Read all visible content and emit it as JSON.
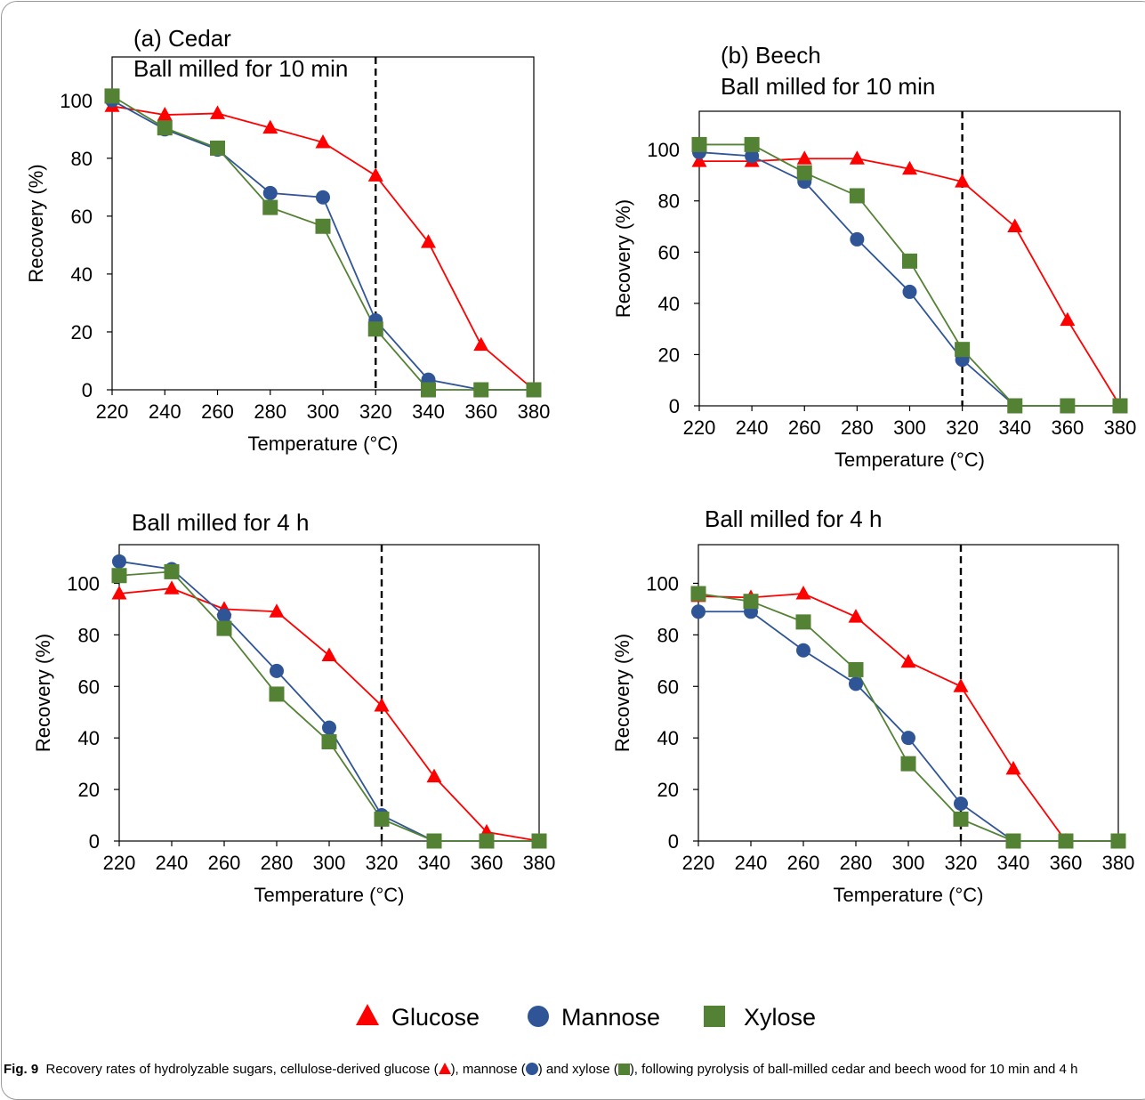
{
  "chart_data": [
    {
      "type": "line",
      "title": "(a) Cedar",
      "subtitle": "Ball milled for 10 min",
      "xlabel": "Temperature (°C)",
      "ylabel": "Recovery (%)",
      "xlim": [
        220,
        380
      ],
      "ylim": [
        0,
        115
      ],
      "x_ticks": [
        220,
        240,
        260,
        280,
        300,
        320,
        340,
        360,
        380
      ],
      "y_ticks": [
        0,
        20,
        40,
        60,
        80,
        100
      ],
      "dashed_line_x": 320,
      "x": [
        220,
        240,
        260,
        280,
        300,
        320,
        340,
        360,
        380
      ],
      "series": [
        {
          "name": "Glucose",
          "color": "#ff0000",
          "marker": "triangle",
          "values": [
            98,
            95,
            95.5,
            90.5,
            85.5,
            74,
            51,
            15.5,
            0
          ]
        },
        {
          "name": "Mannose",
          "color": "#2f5597",
          "marker": "circle",
          "values": [
            100,
            90,
            83,
            68,
            66.5,
            24,
            3.5,
            0,
            0
          ]
        },
        {
          "name": "Xylose",
          "color": "#548235",
          "marker": "square",
          "values": [
            101.5,
            90.5,
            83.5,
            63,
            56.5,
            21,
            0,
            0,
            0
          ]
        }
      ]
    },
    {
      "type": "line",
      "title": "(b) Beech",
      "subtitle": "Ball milled for 10 min",
      "xlabel": "Temperature (°C)",
      "ylabel": "Recovery (%)",
      "xlim": [
        220,
        380
      ],
      "ylim": [
        0,
        115
      ],
      "x_ticks": [
        220,
        240,
        260,
        280,
        300,
        320,
        340,
        360,
        380
      ],
      "y_ticks": [
        0,
        20,
        40,
        60,
        80,
        100
      ],
      "dashed_line_x": 320,
      "x": [
        220,
        240,
        260,
        280,
        300,
        320,
        340,
        360,
        380
      ],
      "series": [
        {
          "name": "Glucose",
          "color": "#ff0000",
          "marker": "triangle",
          "values": [
            95.5,
            95.5,
            96.5,
            96.5,
            92.5,
            87.5,
            70,
            33.5,
            0
          ]
        },
        {
          "name": "Mannose",
          "color": "#2f5597",
          "marker": "circle",
          "values": [
            99,
            97.5,
            87.5,
            65,
            44.5,
            18,
            0,
            0,
            0
          ]
        },
        {
          "name": "Xylose",
          "color": "#548235",
          "marker": "square",
          "values": [
            102,
            102,
            91,
            82,
            56.5,
            22,
            0,
            0,
            0
          ]
        }
      ]
    },
    {
      "type": "line",
      "title": "",
      "subtitle": "Ball milled for 4 h",
      "xlabel": "Temperature (°C)",
      "ylabel": "Recovery (%)",
      "xlim": [
        220,
        380
      ],
      "ylim": [
        0,
        115
      ],
      "x_ticks": [
        220,
        240,
        260,
        280,
        300,
        320,
        340,
        360,
        380
      ],
      "y_ticks": [
        0,
        20,
        40,
        60,
        80,
        100
      ],
      "dashed_line_x": 320,
      "x": [
        220,
        240,
        260,
        280,
        300,
        320,
        340,
        360,
        380
      ],
      "series": [
        {
          "name": "Glucose",
          "color": "#ff0000",
          "marker": "triangle",
          "values": [
            96,
            98,
            90,
            89,
            72,
            52.5,
            25,
            3.5,
            0
          ]
        },
        {
          "name": "Mannose",
          "color": "#2f5597",
          "marker": "circle",
          "values": [
            108.5,
            105.5,
            87.5,
            66,
            44,
            10,
            0,
            0,
            0
          ]
        },
        {
          "name": "Xylose",
          "color": "#548235",
          "marker": "square",
          "values": [
            103,
            104.5,
            82.5,
            57,
            38.5,
            8.5,
            0,
            0,
            0
          ]
        }
      ]
    },
    {
      "type": "line",
      "title": "",
      "subtitle": "Ball milled for 4 h",
      "xlabel": "Temperature (°C)",
      "ylabel": "Recovery (%)",
      "xlim": [
        220,
        380
      ],
      "ylim": [
        0,
        115
      ],
      "x_ticks": [
        220,
        240,
        260,
        280,
        300,
        320,
        340,
        360,
        380
      ],
      "y_ticks": [
        0,
        20,
        40,
        60,
        80,
        100
      ],
      "dashed_line_x": 320,
      "x": [
        220,
        240,
        260,
        280,
        300,
        320,
        340,
        360,
        380
      ],
      "series": [
        {
          "name": "Glucose",
          "color": "#ff0000",
          "marker": "triangle",
          "values": [
            95,
            94.5,
            96,
            87,
            69.5,
            60,
            28,
            0,
            0
          ]
        },
        {
          "name": "Mannose",
          "color": "#2f5597",
          "marker": "circle",
          "values": [
            89,
            89,
            74,
            61,
            40,
            14.5,
            0,
            0,
            0
          ]
        },
        {
          "name": "Xylose",
          "color": "#548235",
          "marker": "square",
          "values": [
            96,
            93,
            85,
            66.5,
            30,
            8.5,
            0,
            0,
            0
          ]
        }
      ]
    }
  ],
  "legend": [
    {
      "name": "Glucose",
      "color": "#ff0000",
      "marker": "triangle"
    },
    {
      "name": "Mannose",
      "color": "#2f5597",
      "marker": "circle"
    },
    {
      "name": "Xylose",
      "color": "#548235",
      "marker": "square"
    }
  ],
  "caption": {
    "label": "Fig. 9",
    "part1": "Recovery rates of hydrolyzable sugars, cellulose-derived glucose (",
    "part2": "), mannose (",
    "part3": ") and xylose (",
    "part4": "), following pyrolysis of ball-milled cedar and beech wood for 10 min and 4 h"
  }
}
